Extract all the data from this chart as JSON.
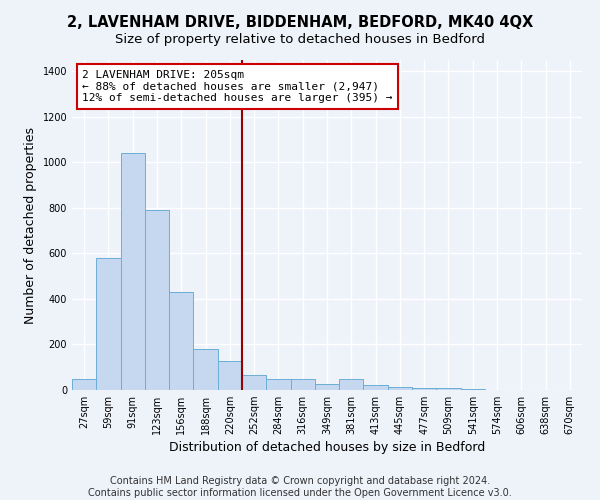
{
  "title": "2, LAVENHAM DRIVE, BIDDENHAM, BEDFORD, MK40 4QX",
  "subtitle": "Size of property relative to detached houses in Bedford",
  "xlabel": "Distribution of detached houses by size in Bedford",
  "ylabel": "Number of detached properties",
  "footer_line1": "Contains HM Land Registry data © Crown copyright and database right 2024.",
  "footer_line2": "Contains public sector information licensed under the Open Government Licence v3.0.",
  "bar_labels": [
    "27sqm",
    "59sqm",
    "91sqm",
    "123sqm",
    "156sqm",
    "188sqm",
    "220sqm",
    "252sqm",
    "284sqm",
    "316sqm",
    "349sqm",
    "381sqm",
    "413sqm",
    "445sqm",
    "477sqm",
    "509sqm",
    "541sqm",
    "574sqm",
    "606sqm",
    "638sqm",
    "670sqm"
  ],
  "bar_values": [
    50,
    578,
    1040,
    790,
    430,
    182,
    128,
    65,
    50,
    50,
    25,
    48,
    22,
    15,
    10,
    8,
    5,
    0,
    0,
    0,
    0
  ],
  "bar_color": "#c5d8ef",
  "bar_edge_color": "#6aaed6",
  "vline_color": "#990000",
  "annotation_text": "2 LAVENHAM DRIVE: 205sqm\n← 88% of detached houses are smaller (2,947)\n12% of semi-detached houses are larger (395) →",
  "annotation_box_facecolor": "#ffffff",
  "annotation_border_color": "#cc0000",
  "ylim": [
    0,
    1450
  ],
  "yticks": [
    0,
    200,
    400,
    600,
    800,
    1000,
    1200,
    1400
  ],
  "bg_color": "#eef2f9",
  "plot_bg_color": "#eef2f9",
  "grid_color": "#ffffff",
  "title_fontsize": 10.5,
  "subtitle_fontsize": 9.5,
  "axis_label_fontsize": 9,
  "tick_fontsize": 7,
  "annotation_fontsize": 8,
  "footer_fontsize": 7,
  "vline_x_index": 6.5
}
